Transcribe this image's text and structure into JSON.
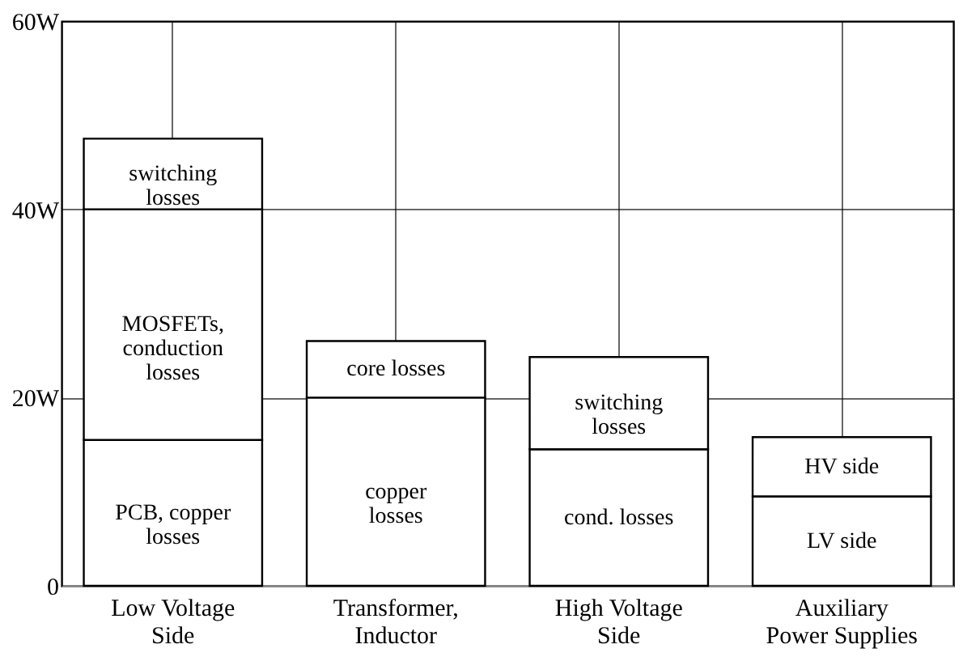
{
  "chart_data": {
    "type": "bar",
    "stacked": true,
    "categories": [
      "Low Voltage\nSide",
      "Transformer,\nInductor",
      "High Voltage\nSide",
      "Auxiliary\nPower Supplies"
    ],
    "series": [
      {
        "color": "#ffffff",
        "values": [
          15.5,
          20,
          14.5,
          9.5
        ],
        "value_labels": [
          "PCB, copper\nlosses",
          "copper\nlosses",
          "cond. losses",
          "LV side"
        ]
      },
      {
        "color": "#ffffff",
        "values": [
          24.5,
          6,
          9.8,
          6.3
        ],
        "value_labels": [
          "MOSFETs,\nconduction\nlosses",
          "core losses",
          "switching\nlosses",
          "HV side"
        ]
      },
      {
        "color": "#ffffff",
        "values": [
          7.5,
          null,
          null,
          null
        ],
        "value_labels": [
          "switching\nlosses",
          null,
          null,
          null
        ]
      }
    ],
    "ylim": [
      0,
      60
    ],
    "yticks": [
      0,
      {
        "value": 20,
        "label": "20W"
      },
      {
        "value": 40,
        "label": "40W"
      },
      {
        "value": 60,
        "label": "60W"
      }
    ],
    "grid": true
  }
}
